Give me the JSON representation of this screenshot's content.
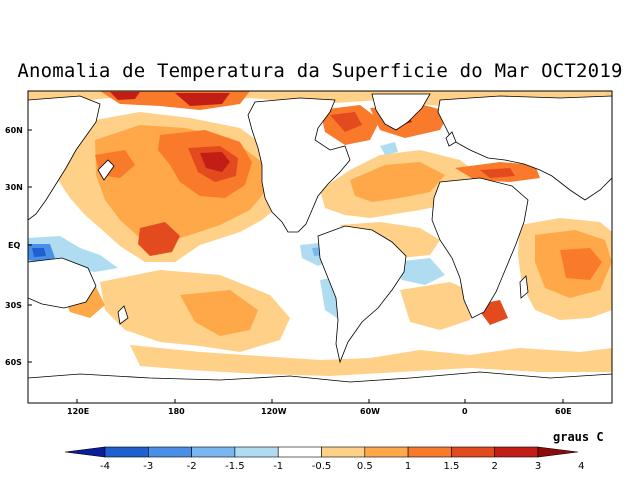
{
  "title": "Anomalia de Temperatura da Superficie do Mar OCT2019",
  "units": "graus C",
  "lat_labels": [
    "60N",
    "30N",
    "EQ",
    "30S",
    "60S"
  ],
  "lon_labels": [
    "120E",
    "180",
    "120W",
    "60W",
    "0",
    "60E"
  ],
  "colorbar": {
    "labels": [
      "-4",
      "-3",
      "-2",
      "-1.5",
      "-1",
      "-0.5",
      "0.5",
      "1",
      "1.5",
      "2",
      "3",
      "4"
    ],
    "colors": [
      "#0a1e9b",
      "#1f5fd0",
      "#4a8fe6",
      "#7ab6f0",
      "#b0dcf2",
      "#ffffff",
      "#ffd088",
      "#ffa84a",
      "#f97a2a",
      "#e34b1e",
      "#c21e16",
      "#8e0b0b"
    ]
  },
  "palette": {
    "warm1": "#ffd088",
    "warm2": "#ffa84a",
    "warm3": "#f97a2a",
    "warm4": "#e34b1e",
    "warm5": "#c21e16",
    "cold1": "#b0dcf2",
    "cold2": "#7ab6f0",
    "cold3": "#4a8fe6"
  }
}
